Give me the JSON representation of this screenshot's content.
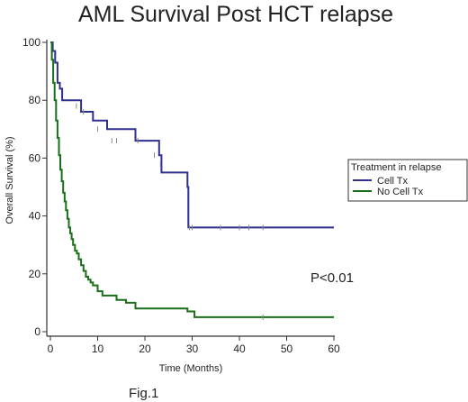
{
  "chart_data": {
    "type": "line",
    "step": true,
    "title": "AML Survival Post HCT relapse",
    "xlabel": "Time (Months)",
    "ylabel": "Overall Survival (%)",
    "xlim": [
      0,
      60
    ],
    "ylim": [
      0,
      100
    ],
    "xticks": [
      0,
      10,
      20,
      30,
      40,
      50,
      60
    ],
    "yticks": [
      0,
      20,
      40,
      60,
      80,
      100
    ],
    "grid": false,
    "legend_title": "Treatment in relapse",
    "legend_position": "right",
    "annotation": "P<0.01",
    "figure_label": "Fig.1",
    "series": [
      {
        "name": "Cell Tx",
        "color": "#2e2f8e",
        "x": [
          0,
          0.5,
          1,
          1.5,
          2,
          2.5,
          4,
          6.5,
          9,
          12,
          18,
          23,
          23.5,
          29,
          29.2,
          60
        ],
        "y": [
          100,
          97,
          93,
          86,
          84,
          80,
          80,
          76,
          73,
          70,
          66,
          61,
          55,
          50,
          36,
          36
        ],
        "censored": [
          [
            5.5,
            78
          ],
          [
            7,
            76
          ],
          [
            10,
            70
          ],
          [
            13,
            66
          ],
          [
            14,
            66
          ],
          [
            18.5,
            66
          ],
          [
            22,
            61
          ],
          [
            23.3,
            58
          ],
          [
            29.4,
            36
          ],
          [
            30,
            36
          ],
          [
            36,
            36
          ],
          [
            40,
            36
          ],
          [
            42,
            36
          ],
          [
            45,
            36
          ]
        ]
      },
      {
        "name": "No Cell Tx",
        "color": "#1a6e1a",
        "x": [
          0,
          0.3,
          0.6,
          0.9,
          1.2,
          1.5,
          1.8,
          2.1,
          2.4,
          2.7,
          3,
          3.3,
          3.6,
          3.9,
          4.2,
          4.5,
          4.8,
          5.2,
          5.6,
          6,
          6.5,
          7,
          7.5,
          8,
          8.5,
          9,
          10,
          11,
          14,
          16,
          18,
          29,
          30.5,
          60
        ],
        "y": [
          100,
          94,
          86,
          80,
          73,
          67,
          61,
          56,
          52,
          48,
          45,
          42,
          39,
          36,
          34,
          32,
          30,
          28,
          27,
          25,
          23,
          21,
          19,
          18,
          17,
          16,
          14,
          12.5,
          11,
          10,
          8,
          7,
          5,
          5
        ],
        "censored": [
          [
            45,
            5
          ]
        ]
      }
    ]
  }
}
